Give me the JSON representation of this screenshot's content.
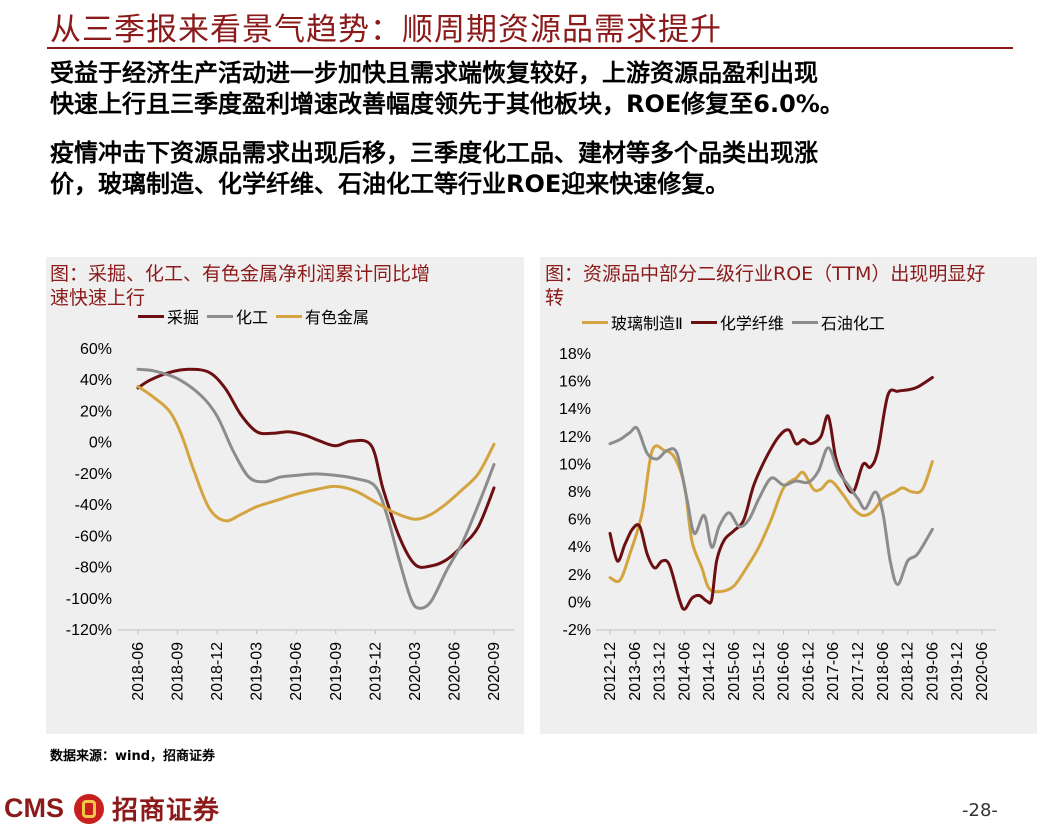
{
  "page": {
    "title": "从三季报来看景气趋势：顺周期资源品需求提升",
    "paragraph1": [
      "受益于经济生产活动进一步加快且需求端恢复较好，上游资源品盈利出现",
      "快速上行且三季度盈利增速改善幅度领先于其他板块，ROE修复至6.0%。"
    ],
    "paragraph2": [
      "疫情冲击下资源品需求出现后移，三季度化工品、建材等多个品类出现涨",
      "价，玻璃制造、化学纤维、石油化工等行业ROE迎来快速修复。"
    ],
    "source": "数据来源：wind，招商证券",
    "logo_text": "CMS",
    "logo_cn": "招商证券",
    "page_number": "-28-"
  },
  "chart_data": [
    {
      "type": "line",
      "title": [
        "图：采掘、化工、有色金属净利润累计同比增",
        "速快速上行"
      ],
      "x": [
        "2018-06",
        "2018-09",
        "2018-12",
        "2019-03",
        "2019-06",
        "2019-09",
        "2019-12",
        "2020-03",
        "2020-06",
        "2020-09"
      ],
      "yticks": [
        "60%",
        "40%",
        "20%",
        "0%",
        "-20%",
        "-40%",
        "-60%",
        "-80%",
        "-100%",
        "-120%"
      ],
      "ylim": [
        -120,
        60
      ],
      "legend_position": "top",
      "series": [
        {
          "name": "采掘",
          "color": "#6b0f12",
          "points": [
            [
              0,
              35
            ],
            [
              0.3,
              40
            ],
            [
              0.8,
              45
            ],
            [
              1.3,
              47
            ],
            [
              1.8,
              45
            ],
            [
              2.2,
              35
            ],
            [
              2.6,
              18
            ],
            [
              3.0,
              7
            ],
            [
              3.4,
              6
            ],
            [
              3.8,
              7
            ],
            [
              4.2,
              5
            ],
            [
              4.6,
              1
            ],
            [
              5.0,
              -2
            ],
            [
              5.4,
              1
            ],
            [
              5.9,
              -2
            ],
            [
              6.2,
              -30
            ],
            [
              6.6,
              -60
            ],
            [
              7.0,
              -78
            ],
            [
              7.4,
              -79
            ],
            [
              7.8,
              -75
            ],
            [
              8.2,
              -66
            ],
            [
              8.6,
              -54
            ],
            [
              9.0,
              -29
            ]
          ]
        },
        {
          "name": "化工",
          "color": "#8c8c8c",
          "points": [
            [
              0,
              47
            ],
            [
              0.4,
              46
            ],
            [
              1.0,
              41
            ],
            [
              1.6,
              30
            ],
            [
              2.0,
              17
            ],
            [
              2.4,
              -5
            ],
            [
              2.8,
              -22
            ],
            [
              3.2,
              -25
            ],
            [
              3.6,
              -22
            ],
            [
              4.0,
              -21
            ],
            [
              4.5,
              -20
            ],
            [
              5.0,
              -21
            ],
            [
              5.5,
              -23
            ],
            [
              6.0,
              -28
            ],
            [
              6.3,
              -47
            ],
            [
              6.6,
              -75
            ],
            [
              6.9,
              -100
            ],
            [
              7.1,
              -106
            ],
            [
              7.4,
              -102
            ],
            [
              7.8,
              -82
            ],
            [
              8.2,
              -64
            ],
            [
              8.6,
              -40
            ],
            [
              9.0,
              -14
            ]
          ]
        },
        {
          "name": "有色金属",
          "color": "#d4a441",
          "points": [
            [
              0,
              36
            ],
            [
              0.4,
              29
            ],
            [
              0.8,
              20
            ],
            [
              1.1,
              5
            ],
            [
              1.4,
              -17
            ],
            [
              1.8,
              -42
            ],
            [
              2.2,
              -50
            ],
            [
              2.6,
              -46
            ],
            [
              3.0,
              -41
            ],
            [
              3.5,
              -37
            ],
            [
              4.0,
              -33
            ],
            [
              4.5,
              -30
            ],
            [
              5.0,
              -28
            ],
            [
              5.5,
              -31
            ],
            [
              6.0,
              -38
            ],
            [
              6.5,
              -45
            ],
            [
              7.0,
              -49
            ],
            [
              7.4,
              -46
            ],
            [
              7.8,
              -39
            ],
            [
              8.2,
              -30
            ],
            [
              8.6,
              -20
            ],
            [
              9.0,
              -1
            ]
          ]
        }
      ]
    },
    {
      "type": "line",
      "title": [
        "图：资源品中部分二级行业ROE（TTM）出现明显好",
        "转"
      ],
      "x": [
        "2012-12",
        "2013-06",
        "2013-12",
        "2014-06",
        "2014-12",
        "2015-06",
        "2015-12",
        "2016-06",
        "2016-12",
        "2017-06",
        "2017-12",
        "2018-06",
        "2018-12",
        "2019-06",
        "2019-12",
        "2020-06"
      ],
      "yticks": [
        "18%",
        "16%",
        "14%",
        "12%",
        "10%",
        "8%",
        "6%",
        "4%",
        "2%",
        "0%",
        "-2%"
      ],
      "ylim": [
        -2,
        18
      ],
      "legend_position": "top",
      "series": [
        {
          "name": "玻璃制造Ⅱ",
          "color": "#d4a441",
          "points": [
            [
              0,
              1.8
            ],
            [
              0.4,
              1.6
            ],
            [
              0.8,
              3.5
            ],
            [
              1.3,
              6.5
            ],
            [
              1.7,
              11
            ],
            [
              2.2,
              11
            ],
            [
              2.6,
              10.5
            ],
            [
              3.0,
              8.5
            ],
            [
              3.3,
              4.5
            ],
            [
              3.7,
              2.5
            ],
            [
              4.0,
              1.0
            ],
            [
              4.5,
              0.8
            ],
            [
              5.0,
              1.2
            ],
            [
              5.5,
              2.5
            ],
            [
              6.0,
              4.0
            ],
            [
              6.5,
              6.0
            ],
            [
              7.0,
              8.3
            ],
            [
              7.5,
              9.0
            ],
            [
              7.8,
              9.4
            ],
            [
              8.2,
              8.2
            ],
            [
              8.5,
              8.2
            ],
            [
              8.9,
              8.8
            ],
            [
              9.4,
              7.8
            ],
            [
              9.8,
              6.8
            ],
            [
              10.2,
              6.3
            ],
            [
              10.6,
              6.6
            ],
            [
              11.0,
              7.5
            ],
            [
              11.5,
              8.0
            ],
            [
              11.8,
              8.3
            ],
            [
              12.2,
              8.0
            ],
            [
              12.6,
              8.2
            ],
            [
              13.0,
              10.2
            ]
          ]
        },
        {
          "name": "化学纤维",
          "color": "#6b0f12",
          "points": [
            [
              0,
              5.0
            ],
            [
              0.3,
              3.0
            ],
            [
              0.6,
              4.2
            ],
            [
              0.9,
              5.3
            ],
            [
              1.2,
              5.5
            ],
            [
              1.5,
              3.5
            ],
            [
              1.8,
              2.5
            ],
            [
              2.1,
              3.0
            ],
            [
              2.4,
              2.7
            ],
            [
              2.8,
              0.2
            ],
            [
              3.0,
              -0.5
            ],
            [
              3.3,
              0.3
            ],
            [
              3.6,
              0.5
            ],
            [
              3.9,
              0.1
            ],
            [
              4.1,
              0.2
            ],
            [
              4.3,
              3.0
            ],
            [
              4.6,
              4.5
            ],
            [
              5.0,
              5.2
            ],
            [
              5.4,
              6.0
            ],
            [
              5.8,
              8.5
            ],
            [
              6.3,
              10.5
            ],
            [
              6.8,
              12.0
            ],
            [
              7.2,
              12.5
            ],
            [
              7.5,
              11.5
            ],
            [
              7.8,
              11.8
            ],
            [
              8.1,
              11.5
            ],
            [
              8.5,
              12.0
            ],
            [
              8.8,
              13.5
            ],
            [
              9.1,
              10.5
            ],
            [
              9.4,
              9.0
            ],
            [
              9.8,
              8.0
            ],
            [
              10.2,
              10.0
            ],
            [
              10.5,
              9.8
            ],
            [
              10.8,
              11.0
            ],
            [
              11.2,
              15.0
            ],
            [
              11.6,
              15.3
            ],
            [
              12.0,
              15.4
            ],
            [
              12.4,
              15.6
            ],
            [
              13.0,
              16.3
            ]
          ]
        },
        {
          "name": "石油化工",
          "color": "#8c8c8c",
          "points": [
            [
              0,
              11.5
            ],
            [
              0.4,
              11.8
            ],
            [
              0.8,
              12.3
            ],
            [
              1.1,
              12.6
            ],
            [
              1.5,
              10.8
            ],
            [
              1.9,
              10.4
            ],
            [
              2.3,
              11.0
            ],
            [
              2.7,
              10.8
            ],
            [
              3.1,
              7.5
            ],
            [
              3.4,
              5.0
            ],
            [
              3.8,
              6.3
            ],
            [
              4.1,
              4.0
            ],
            [
              4.4,
              5.5
            ],
            [
              4.8,
              6.5
            ],
            [
              5.2,
              5.5
            ],
            [
              5.6,
              6.0
            ],
            [
              6.0,
              7.5
            ],
            [
              6.5,
              9.0
            ],
            [
              7.0,
              8.5
            ],
            [
              7.5,
              8.8
            ],
            [
              8.0,
              8.7
            ],
            [
              8.4,
              9.5
            ],
            [
              8.8,
              11.2
            ],
            [
              9.2,
              9.5
            ],
            [
              9.6,
              8.5
            ],
            [
              10.0,
              7.5
            ],
            [
              10.3,
              6.8
            ],
            [
              10.7,
              8.0
            ],
            [
              11.0,
              6.5
            ],
            [
              11.3,
              3.0
            ],
            [
              11.6,
              1.3
            ],
            [
              12.0,
              3.0
            ],
            [
              12.4,
              3.5
            ],
            [
              13.0,
              5.3
            ]
          ]
        }
      ]
    }
  ]
}
